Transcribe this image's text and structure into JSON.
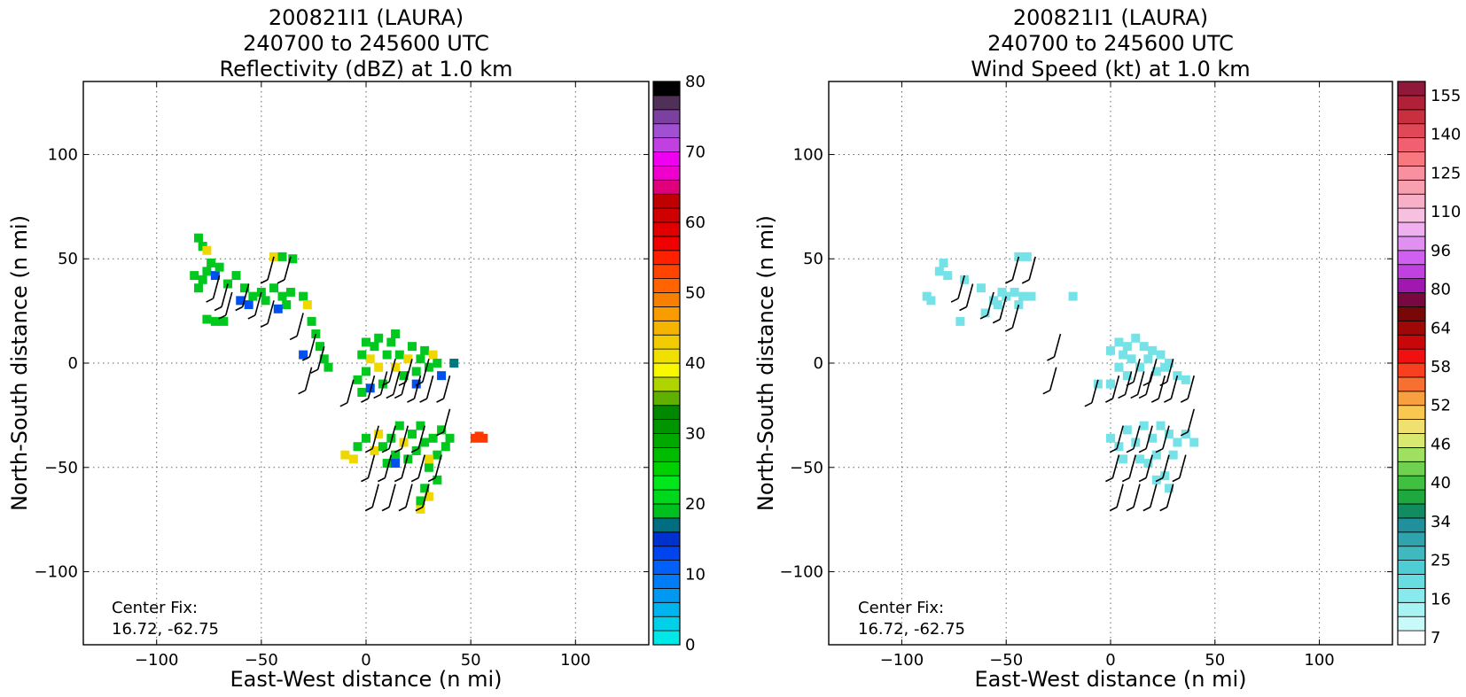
{
  "chart_data": [
    {
      "type": "heatmap",
      "title_lines": [
        "200821I1 (LAURA)",
        "240700 to 245600 UTC",
        "Reflectivity (dBZ) at 1.0 km"
      ],
      "xlabel": "East-West distance (n mi)",
      "ylabel": "North-South distance (n mi)",
      "xlim": [
        -135,
        135
      ],
      "ylim": [
        -135,
        135
      ],
      "xticks": [
        -100,
        -50,
        0,
        50,
        100
      ],
      "yticks": [
        -100,
        -50,
        0,
        50,
        100
      ],
      "xtick_labels": [
        "−100",
        "−50",
        "0",
        "50",
        "100"
      ],
      "ytick_labels": [
        "−100",
        "−50",
        "0",
        "50",
        "100"
      ],
      "grid": true,
      "annotation_lines": [
        "Center Fix:",
        "16.72, -62.75"
      ],
      "colorbar": {
        "min": 0,
        "max": 80,
        "ticks": [
          0,
          10,
          20,
          30,
          40,
          50,
          60,
          70,
          80
        ],
        "tick_labels": [
          "0",
          "10",
          "20",
          "30",
          "40",
          "50",
          "60",
          "70",
          "80"
        ],
        "colors": [
          "#00e8e8",
          "#00d0e8",
          "#00b4f0",
          "#0098f0",
          "#007cf8",
          "#0060f8",
          "#0044f0",
          "#0030d0",
          "#006e80",
          "#00c020",
          "#00d81c",
          "#00e81c",
          "#00d000",
          "#00bc00",
          "#00a800",
          "#009400",
          "#008800",
          "#60b000",
          "#b0d400",
          "#f8f800",
          "#f0e000",
          "#f0cc00",
          "#f4b400",
          "#f89c00",
          "#f88000",
          "#ff6400",
          "#ff4400",
          "#ff2000",
          "#f00000",
          "#e00000",
          "#d00000",
          "#c00000",
          "#e0007c",
          "#f000cc",
          "#f000f0",
          "#c040e0",
          "#a050d0",
          "#7c40a0",
          "#503058",
          "#000000"
        ]
      },
      "cells": [
        [
          -82,
          42,
          "g"
        ],
        [
          -78,
          40,
          "g"
        ],
        [
          -80,
          36,
          "g"
        ],
        [
          -76,
          44,
          "g"
        ],
        [
          -72,
          42,
          "b"
        ],
        [
          -70,
          46,
          "g"
        ],
        [
          -74,
          48,
          "g"
        ],
        [
          -78,
          56,
          "g"
        ],
        [
          -80,
          60,
          "g"
        ],
        [
          -76,
          54,
          "y"
        ],
        [
          -66,
          38,
          "g"
        ],
        [
          -62,
          42,
          "g"
        ],
        [
          -58,
          36,
          "g"
        ],
        [
          -60,
          30,
          "b"
        ],
        [
          -56,
          28,
          "b"
        ],
        [
          -54,
          32,
          "g"
        ],
        [
          -50,
          34,
          "g"
        ],
        [
          -48,
          30,
          "g"
        ],
        [
          -44,
          36,
          "g"
        ],
        [
          -40,
          32,
          "g"
        ],
        [
          -38,
          28,
          "g"
        ],
        [
          -42,
          26,
          "b"
        ],
        [
          -36,
          34,
          "g"
        ],
        [
          -30,
          32,
          "g"
        ],
        [
          -44,
          51,
          "y"
        ],
        [
          -40,
          51,
          "g"
        ],
        [
          -35,
          50,
          "g"
        ],
        [
          -28,
          28,
          "y"
        ],
        [
          -26,
          20,
          "g"
        ],
        [
          -24,
          14,
          "g"
        ],
        [
          -22,
          8,
          "g"
        ],
        [
          -20,
          2,
          "g"
        ],
        [
          -30,
          4,
          "b"
        ],
        [
          -18,
          -2,
          "g"
        ],
        [
          -72,
          20,
          "g"
        ],
        [
          -68,
          20,
          "g"
        ],
        [
          -76,
          21,
          "g"
        ],
        [
          -4,
          -8,
          "g"
        ],
        [
          -2,
          -14,
          "g"
        ],
        [
          0,
          -4,
          "g"
        ],
        [
          2,
          2,
          "y"
        ],
        [
          4,
          8,
          "g"
        ],
        [
          6,
          -2,
          "y"
        ],
        [
          8,
          -10,
          "g"
        ],
        [
          10,
          4,
          "g"
        ],
        [
          12,
          10,
          "g"
        ],
        [
          14,
          -2,
          "y"
        ],
        [
          16,
          4,
          "g"
        ],
        [
          18,
          -6,
          "g"
        ],
        [
          20,
          2,
          "y"
        ],
        [
          22,
          8,
          "g"
        ],
        [
          24,
          -4,
          "g"
        ],
        [
          26,
          2,
          "g"
        ],
        [
          28,
          6,
          "g"
        ],
        [
          30,
          -2,
          "g"
        ],
        [
          32,
          4,
          "y"
        ],
        [
          34,
          0,
          "g"
        ],
        [
          36,
          -6,
          "b"
        ],
        [
          24,
          -10,
          "b"
        ],
        [
          0,
          10,
          "g"
        ],
        [
          -2,
          4,
          "g"
        ],
        [
          6,
          12,
          "g"
        ],
        [
          14,
          14,
          "g"
        ],
        [
          2,
          -12,
          "b"
        ],
        [
          42,
          0,
          "t"
        ],
        [
          -10,
          -44,
          "y"
        ],
        [
          -6,
          -46,
          "y"
        ],
        [
          -4,
          -40,
          "g"
        ],
        [
          0,
          -36,
          "g"
        ],
        [
          4,
          -42,
          "y"
        ],
        [
          6,
          -34,
          "y"
        ],
        [
          8,
          -40,
          "g"
        ],
        [
          10,
          -48,
          "g"
        ],
        [
          12,
          -36,
          "g"
        ],
        [
          14,
          -44,
          "g"
        ],
        [
          16,
          -30,
          "g"
        ],
        [
          18,
          -38,
          "y"
        ],
        [
          20,
          -46,
          "g"
        ],
        [
          22,
          -34,
          "g"
        ],
        [
          24,
          -42,
          "g"
        ],
        [
          26,
          -30,
          "g"
        ],
        [
          28,
          -38,
          "g"
        ],
        [
          30,
          -50,
          "g"
        ],
        [
          32,
          -36,
          "g"
        ],
        [
          34,
          -44,
          "g"
        ],
        [
          36,
          -32,
          "g"
        ],
        [
          38,
          -40,
          "g"
        ],
        [
          40,
          -36,
          "g"
        ],
        [
          14,
          -48,
          "b"
        ],
        [
          30,
          -46,
          "y"
        ],
        [
          28,
          -60,
          "g"
        ],
        [
          30,
          -64,
          "y"
        ],
        [
          26,
          -70,
          "y"
        ],
        [
          26,
          -66,
          "g"
        ],
        [
          34,
          -56,
          "g"
        ],
        [
          54,
          -35,
          "r"
        ],
        [
          56,
          -36,
          "r"
        ],
        [
          52,
          -36,
          "r"
        ]
      ],
      "barbs": [
        [
          -70,
          42
        ],
        [
          -66,
          38
        ],
        [
          -64,
          34
        ],
        [
          -56,
          38
        ],
        [
          -50,
          34
        ],
        [
          -44,
          30
        ],
        [
          -44,
          51
        ],
        [
          -36,
          51
        ],
        [
          -30,
          24
        ],
        [
          -24,
          14
        ],
        [
          -20,
          8
        ],
        [
          -26,
          -2
        ],
        [
          -6,
          -8
        ],
        [
          4,
          -6
        ],
        [
          10,
          -4
        ],
        [
          16,
          -4
        ],
        [
          20,
          -4
        ],
        [
          26,
          -6
        ],
        [
          32,
          -6
        ],
        [
          40,
          -6
        ],
        [
          14,
          2
        ],
        [
          22,
          2
        ],
        [
          30,
          2
        ],
        [
          6,
          -30
        ],
        [
          14,
          -30
        ],
        [
          20,
          -30
        ],
        [
          28,
          -30
        ],
        [
          40,
          -22
        ],
        [
          4,
          -44
        ],
        [
          12,
          -44
        ],
        [
          20,
          -44
        ],
        [
          28,
          -44
        ],
        [
          36,
          -44
        ],
        [
          6,
          -58
        ],
        [
          14,
          -58
        ],
        [
          22,
          -58
        ],
        [
          30,
          -58
        ]
      ]
    },
    {
      "type": "heatmap",
      "title_lines": [
        "200821I1 (LAURA)",
        "240700 to 245600 UTC",
        "Wind Speed (kt) at 1.0 km"
      ],
      "xlabel": "East-West distance (n mi)",
      "ylabel": "North-South distance (n mi)",
      "xlim": [
        -135,
        135
      ],
      "ylim": [
        -135,
        135
      ],
      "xticks": [
        -100,
        -50,
        0,
        50,
        100
      ],
      "yticks": [
        -100,
        -50,
        0,
        50,
        100
      ],
      "xtick_labels": [
        "−100",
        "−50",
        "0",
        "50",
        "100"
      ],
      "ytick_labels": [
        "−100",
        "−50",
        "0",
        "50",
        "100"
      ],
      "grid": true,
      "annotation_lines": [
        "Center Fix:",
        "16.72, -62.75"
      ],
      "colorbar": {
        "tick_labels": [
          "7",
          "16",
          "25",
          "34",
          "40",
          "46",
          "52",
          "58",
          "64",
          "80",
          "96",
          "110",
          "125",
          "140",
          "155"
        ],
        "colors": [
          "#ffffff",
          "#c8fafa",
          "#a8f4f4",
          "#88eaec",
          "#68dce0",
          "#50ccd4",
          "#40b8c0",
          "#30a4ac",
          "#20909c",
          "#108c60",
          "#20a840",
          "#40c040",
          "#70d050",
          "#a0e060",
          "#d8e870",
          "#f0e070",
          "#f8c850",
          "#f8a040",
          "#f87030",
          "#f84020",
          "#f01010",
          "#c80808",
          "#a00808",
          "#780808",
          "#780840",
          "#a018b0",
          "#c040e0",
          "#d060f0",
          "#e090f0",
          "#f0b0f0",
          "#f8c0e0",
          "#f8b0c8",
          "#f8a0b0",
          "#f890a0",
          "#f87880",
          "#f06070",
          "#e04858",
          "#c83040",
          "#b02038",
          "#901838"
        ]
      },
      "cells": [
        [
          -82,
          44
        ],
        [
          -78,
          42
        ],
        [
          -80,
          48
        ],
        [
          -88,
          32
        ],
        [
          -86,
          30
        ],
        [
          -70,
          40
        ],
        [
          -62,
          36
        ],
        [
          -56,
          30
        ],
        [
          -50,
          32
        ],
        [
          -46,
          34
        ],
        [
          -42,
          32
        ],
        [
          -38,
          32
        ],
        [
          -44,
          28
        ],
        [
          -52,
          34
        ],
        [
          -54,
          28
        ],
        [
          -60,
          24
        ],
        [
          -44,
          51
        ],
        [
          -40,
          51
        ],
        [
          -72,
          20
        ],
        [
          -18,
          32
        ],
        [
          0,
          6
        ],
        [
          4,
          10
        ],
        [
          8,
          8
        ],
        [
          12,
          12
        ],
        [
          16,
          8
        ],
        [
          20,
          6
        ],
        [
          24,
          4
        ],
        [
          28,
          0
        ],
        [
          32,
          -6
        ],
        [
          36,
          -8
        ],
        [
          10,
          2
        ],
        [
          14,
          -2
        ],
        [
          18,
          2
        ],
        [
          22,
          -4
        ],
        [
          26,
          -2
        ],
        [
          4,
          -2
        ],
        [
          6,
          4
        ],
        [
          -6,
          -10
        ],
        [
          0,
          -10
        ],
        [
          8,
          -6
        ],
        [
          0,
          -36
        ],
        [
          4,
          -40
        ],
        [
          8,
          -32
        ],
        [
          12,
          -38
        ],
        [
          16,
          -30
        ],
        [
          20,
          -36
        ],
        [
          24,
          -30
        ],
        [
          28,
          -34
        ],
        [
          32,
          -38
        ],
        [
          36,
          -34
        ],
        [
          40,
          -38
        ],
        [
          6,
          -46
        ],
        [
          14,
          -46
        ],
        [
          22,
          -44
        ],
        [
          30,
          -44
        ],
        [
          26,
          -54
        ],
        [
          28,
          -60
        ],
        [
          22,
          -56
        ],
        [
          18,
          -48
        ]
      ],
      "barbs": [
        [
          -70,
          42
        ],
        [
          -66,
          38
        ],
        [
          -56,
          34
        ],
        [
          -50,
          32
        ],
        [
          -44,
          28
        ],
        [
          -44,
          51
        ],
        [
          -36,
          51
        ],
        [
          -24,
          14
        ],
        [
          -26,
          -2
        ],
        [
          -6,
          -8
        ],
        [
          4,
          -6
        ],
        [
          10,
          -4
        ],
        [
          16,
          -4
        ],
        [
          20,
          -4
        ],
        [
          26,
          -6
        ],
        [
          32,
          -6
        ],
        [
          40,
          -6
        ],
        [
          14,
          2
        ],
        [
          22,
          2
        ],
        [
          30,
          2
        ],
        [
          6,
          -30
        ],
        [
          14,
          -30
        ],
        [
          20,
          -30
        ],
        [
          28,
          -30
        ],
        [
          40,
          -22
        ],
        [
          4,
          -44
        ],
        [
          12,
          -44
        ],
        [
          20,
          -44
        ],
        [
          28,
          -44
        ],
        [
          36,
          -44
        ],
        [
          6,
          -58
        ],
        [
          14,
          -58
        ],
        [
          22,
          -58
        ],
        [
          30,
          -58
        ]
      ]
    }
  ]
}
